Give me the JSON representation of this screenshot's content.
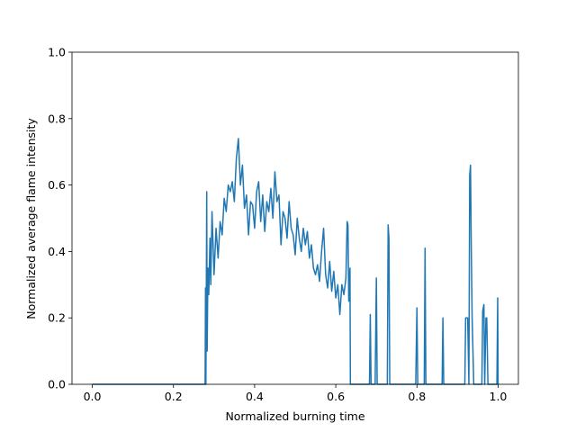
{
  "chart_data": {
    "type": "line",
    "xlabel": "Normalized burning time",
    "ylabel": "Normalized average flame intensity",
    "xlim": [
      -0.05,
      1.05
    ],
    "ylim": [
      0,
      1
    ],
    "xticks": [
      {
        "value": 0,
        "label": "0.0"
      },
      0.2,
      0.4,
      0.6,
      0.8,
      {
        "value": 1,
        "label": "1.0"
      }
    ],
    "yticks": [
      {
        "value": 0,
        "label": "0.0"
      },
      0.2,
      0.4,
      0.6,
      0.8,
      {
        "value": 1,
        "label": "1.0"
      }
    ],
    "x": [
      0,
      0.278,
      0.279,
      0.28,
      0.282,
      0.283,
      0.285,
      0.287,
      0.29,
      0.292,
      0.295,
      0.3,
      0.305,
      0.31,
      0.315,
      0.32,
      0.325,
      0.33,
      0.335,
      0.34,
      0.345,
      0.35,
      0.355,
      0.36,
      0.365,
      0.37,
      0.375,
      0.38,
      0.385,
      0.39,
      0.395,
      0.4,
      0.405,
      0.41,
      0.415,
      0.42,
      0.425,
      0.43,
      0.435,
      0.44,
      0.445,
      0.45,
      0.455,
      0.46,
      0.465,
      0.47,
      0.475,
      0.48,
      0.485,
      0.49,
      0.495,
      0.5,
      0.505,
      0.51,
      0.515,
      0.52,
      0.525,
      0.53,
      0.535,
      0.54,
      0.545,
      0.55,
      0.555,
      0.56,
      0.565,
      0.57,
      0.575,
      0.58,
      0.585,
      0.59,
      0.595,
      0.6,
      0.605,
      0.61,
      0.615,
      0.62,
      0.625,
      0.628,
      0.63,
      0.632,
      0.635,
      0.636,
      0.683,
      0.685,
      0.687,
      0.697,
      0.7,
      0.702,
      0.727,
      0.729,
      0.731,
      0.733,
      0.797,
      0.8,
      0.802,
      0.818,
      0.82,
      0.822,
      0.862,
      0.864,
      0.866,
      0.918,
      0.92,
      0.925,
      0.928,
      0.93,
      0.932,
      0.934,
      0.936,
      0.94,
      0.96,
      0.962,
      0.965,
      0.967,
      0.97,
      0.972,
      0.975,
      0.997,
      0.999,
      1.0
    ],
    "series": [
      {
        "color": "#1f77b4",
        "values": [
          0,
          0,
          0.29,
          0,
          0.58,
          0.1,
          0.35,
          0.27,
          0.44,
          0.3,
          0.52,
          0.33,
          0.47,
          0.38,
          0.49,
          0.45,
          0.56,
          0.52,
          0.6,
          0.58,
          0.61,
          0.55,
          0.68,
          0.74,
          0.6,
          0.66,
          0.53,
          0.57,
          0.45,
          0.55,
          0.54,
          0.47,
          0.58,
          0.61,
          0.49,
          0.57,
          0.46,
          0.55,
          0.52,
          0.59,
          0.5,
          0.64,
          0.55,
          0.57,
          0.42,
          0.52,
          0.5,
          0.44,
          0.55,
          0.47,
          0.45,
          0.39,
          0.5,
          0.44,
          0.4,
          0.47,
          0.42,
          0.46,
          0.38,
          0.42,
          0.35,
          0.33,
          0.36,
          0.31,
          0.4,
          0.47,
          0.33,
          0.29,
          0.37,
          0.28,
          0.34,
          0.26,
          0.3,
          0.21,
          0.3,
          0.27,
          0.32,
          0.49,
          0.48,
          0.25,
          0.35,
          0,
          0,
          0.21,
          0,
          0,
          0.32,
          0,
          0,
          0.48,
          0.44,
          0,
          0,
          0.23,
          0,
          0,
          0.41,
          0,
          0,
          0.2,
          0,
          0,
          0.2,
          0.2,
          0,
          0.63,
          0.66,
          0.4,
          0.2,
          0,
          0,
          0.22,
          0.24,
          0,
          0.2,
          0.2,
          0,
          0,
          0.26,
          0
        ]
      }
    ]
  }
}
